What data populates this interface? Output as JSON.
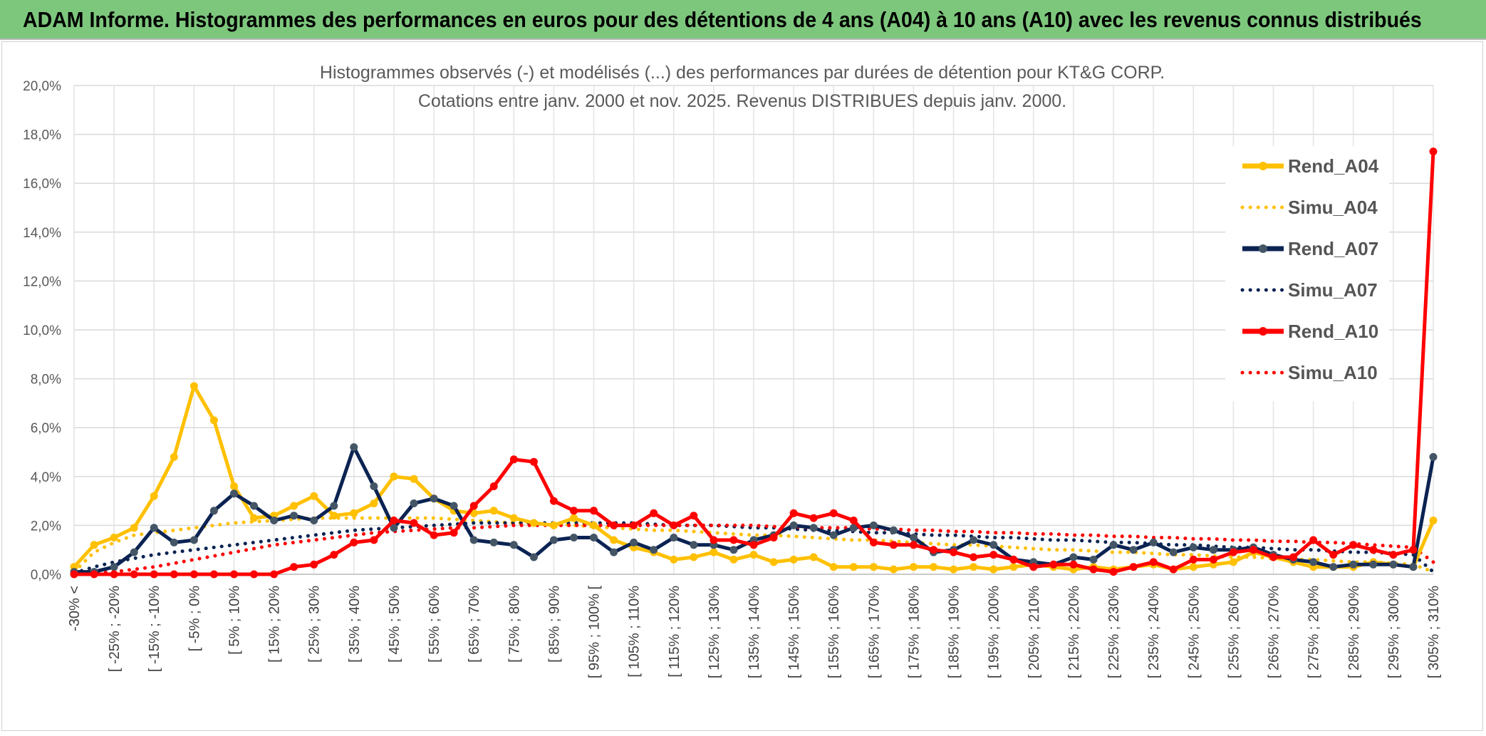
{
  "banner": {
    "title": "ADAM Informe. Histogrammes des performances en euros pour des détentions de 4 ans (A04) à 10 ans (A10) avec les revenus connus distribués"
  },
  "chart_data": {
    "type": "line",
    "title": "Histogrammes observés (-) et modélisés (...) des performances par durées de détention pour KT&G CORP.",
    "subtitle": "Cotations entre janv. 2000 et nov. 2025. Revenus DISTRIBUES depuis janv. 2000.",
    "ylim": [
      0,
      20
    ],
    "y_ticks": [
      "0,0%",
      "2,0%",
      "4,0%",
      "6,0%",
      "8,0%",
      "10,0%",
      "12,0%",
      "14,0%",
      "16,0%",
      "18,0%",
      "20,0%"
    ],
    "grid": true,
    "legend_position": "right",
    "x_labels": [
      "-30% <",
      "[ -25% ; -20%",
      "[ -15% ; -10%",
      "[ -5% ; 0%",
      "[ 5% ; 10%",
      "[ 15% ; 20%",
      "[ 25% ; 30%",
      "[ 35% ; 40%",
      "[ 45% ; 50%",
      "[ 55% ; 60%",
      "[ 65% ; 70%",
      "[ 75% ; 80%",
      "[ 85% ; 90%",
      "[ 95% ; 100% [",
      "[ 105% ; 110%",
      "[ 115% ; 120%",
      "[ 125% ; 130%",
      "[ 135% ; 140%",
      "[ 145% ; 150%",
      "[ 155% ; 160%",
      "[ 165% ; 170%",
      "[ 175% ; 180%",
      "[ 185% ; 190%",
      "[ 195% ; 200%",
      "[ 205% ; 210%",
      "[ 215% ; 220%",
      "[ 225% ; 230%",
      "[ 235% ; 240%",
      "[ 245% ; 250%",
      "[ 255% ; 260%",
      "[ 265% ; 270%",
      "[ 275% ; 280%",
      "[ 285% ; 290%",
      "[ 295% ; 300%",
      "[ 305% ; 310%"
    ],
    "n_points": 69,
    "series": [
      {
        "name": "Rend_A04",
        "style": "solid",
        "color": "#FFC000",
        "values": [
          0.3,
          1.2,
          1.5,
          1.9,
          3.2,
          4.8,
          7.7,
          6.3,
          3.6,
          2.3,
          2.4,
          2.8,
          3.2,
          2.4,
          2.5,
          2.9,
          4.0,
          3.9,
          3.1,
          2.6,
          2.5,
          2.6,
          2.3,
          2.1,
          2.0,
          2.3,
          2.0,
          1.4,
          1.1,
          0.9,
          0.6,
          0.7,
          0.9,
          0.6,
          0.8,
          0.5,
          0.6,
          0.7,
          0.3,
          0.3,
          0.3,
          0.2,
          0.3,
          0.3,
          0.2,
          0.3,
          0.2,
          0.3,
          0.4,
          0.3,
          0.2,
          0.3,
          0.2,
          0.3,
          0.4,
          0.2,
          0.3,
          0.4,
          0.5,
          0.9,
          0.7,
          0.5,
          0.3,
          0.3,
          0.3,
          0.5,
          0.4,
          0.3,
          2.2
        ]
      },
      {
        "name": "Simu_A04",
        "style": "dotted",
        "color": "#FFC000",
        "values": [
          0.1,
          0.9,
          1.3,
          1.6,
          1.7,
          1.8,
          1.9,
          2.0,
          2.1,
          2.15,
          2.2,
          2.25,
          2.3,
          2.3,
          2.3,
          2.3,
          2.3,
          2.3,
          2.3,
          2.25,
          2.2,
          2.15,
          2.1,
          2.1,
          2.05,
          2.0,
          1.95,
          1.9,
          1.85,
          1.8,
          1.8,
          1.75,
          1.7,
          1.65,
          1.6,
          1.6,
          1.55,
          1.5,
          1.45,
          1.4,
          1.4,
          1.35,
          1.3,
          1.25,
          1.2,
          1.2,
          1.15,
          1.1,
          1.05,
          1.0,
          1.0,
          0.95,
          0.9,
          0.9,
          0.85,
          0.8,
          0.8,
          0.75,
          0.7,
          0.7,
          0.65,
          0.6,
          0.6,
          0.55,
          0.5,
          0.5,
          0.45,
          0.4,
          0.1
        ]
      },
      {
        "name": "Rend_A07",
        "style": "solid",
        "color": "#0B2352",
        "values": [
          0.1,
          0.1,
          0.3,
          0.9,
          1.9,
          1.3,
          1.4,
          2.6,
          3.3,
          2.8,
          2.2,
          2.4,
          2.2,
          2.8,
          5.2,
          3.6,
          1.9,
          2.9,
          3.1,
          2.8,
          1.4,
          1.3,
          1.2,
          0.7,
          1.4,
          1.5,
          1.5,
          0.9,
          1.3,
          1.0,
          1.5,
          1.2,
          1.2,
          1.0,
          1.4,
          1.6,
          2.0,
          1.9,
          1.6,
          1.9,
          2.0,
          1.8,
          1.5,
          0.9,
          1.0,
          1.4,
          1.2,
          0.6,
          0.5,
          0.4,
          0.7,
          0.6,
          1.2,
          1.0,
          1.3,
          0.9,
          1.1,
          1.0,
          1.0,
          1.1,
          0.8,
          0.6,
          0.5,
          0.3,
          0.4,
          0.4,
          0.4,
          0.3,
          4.8
        ]
      },
      {
        "name": "Simu_A07",
        "style": "dotted",
        "color": "#0B2352",
        "values": [
          0.05,
          0.3,
          0.5,
          0.65,
          0.8,
          0.9,
          1.0,
          1.1,
          1.2,
          1.3,
          1.4,
          1.5,
          1.6,
          1.7,
          1.8,
          1.85,
          1.9,
          1.95,
          2.0,
          2.05,
          2.1,
          2.1,
          2.1,
          2.1,
          2.1,
          2.1,
          2.1,
          2.1,
          2.1,
          2.05,
          2.0,
          2.0,
          2.0,
          1.95,
          1.9,
          1.9,
          1.85,
          1.8,
          1.8,
          1.75,
          1.7,
          1.7,
          1.65,
          1.6,
          1.6,
          1.55,
          1.5,
          1.5,
          1.45,
          1.4,
          1.4,
          1.35,
          1.3,
          1.3,
          1.25,
          1.2,
          1.2,
          1.15,
          1.1,
          1.1,
          1.05,
          1.0,
          1.0,
          0.95,
          0.9,
          0.9,
          0.85,
          0.8,
          0.1
        ]
      },
      {
        "name": "Rend_A10",
        "style": "solid",
        "color": "#FF0000",
        "values": [
          0.0,
          0.0,
          0.0,
          0.0,
          0.0,
          0.0,
          0.0,
          0.0,
          0.0,
          0.0,
          0.0,
          0.3,
          0.4,
          0.8,
          1.3,
          1.4,
          2.2,
          2.1,
          1.6,
          1.7,
          2.8,
          3.6,
          4.7,
          4.6,
          3.0,
          2.6,
          2.6,
          2.0,
          2.0,
          2.5,
          2.0,
          2.4,
          1.4,
          1.4,
          1.2,
          1.5,
          2.5,
          2.3,
          2.5,
          2.2,
          1.3,
          1.2,
          1.2,
          1.0,
          0.9,
          0.7,
          0.8,
          0.6,
          0.3,
          0.4,
          0.4,
          0.2,
          0.1,
          0.3,
          0.5,
          0.2,
          0.6,
          0.6,
          0.9,
          1.0,
          0.7,
          0.7,
          1.4,
          0.8,
          1.2,
          1.0,
          0.8,
          1.0,
          17.3
        ]
      },
      {
        "name": "Simu_A10",
        "style": "dotted",
        "color": "#FF0000",
        "values": [
          0.0,
          0.05,
          0.1,
          0.2,
          0.3,
          0.45,
          0.6,
          0.75,
          0.9,
          1.05,
          1.2,
          1.3,
          1.4,
          1.5,
          1.6,
          1.7,
          1.75,
          1.8,
          1.85,
          1.9,
          1.9,
          1.95,
          2.0,
          2.0,
          2.0,
          2.0,
          2.0,
          2.0,
          2.0,
          2.0,
          2.0,
          2.0,
          2.0,
          2.0,
          2.0,
          1.95,
          1.95,
          1.9,
          1.9,
          1.9,
          1.85,
          1.85,
          1.8,
          1.8,
          1.75,
          1.75,
          1.7,
          1.7,
          1.65,
          1.65,
          1.6,
          1.6,
          1.55,
          1.55,
          1.5,
          1.5,
          1.45,
          1.45,
          1.4,
          1.4,
          1.35,
          1.35,
          1.3,
          1.3,
          1.25,
          1.2,
          1.15,
          1.1,
          0.5
        ]
      }
    ]
  }
}
